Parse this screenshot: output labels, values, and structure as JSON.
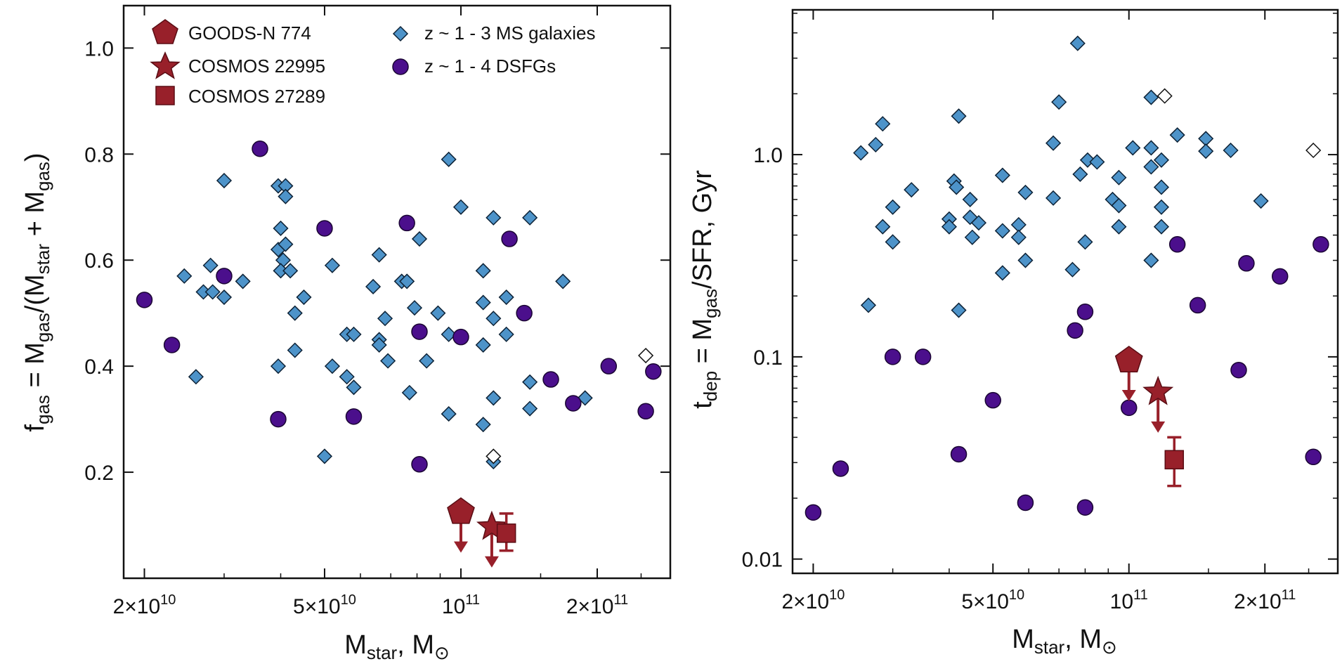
{
  "colors": {
    "ms_fill": "#4d93c9",
    "ms_stroke": "#0d2236",
    "dsfg_fill": "#4b0f8c",
    "dsfg_stroke": "#1a0533",
    "target_fill": "#98202a",
    "target_stroke": "#5a0d14",
    "open_fill": "#ffffff",
    "axis_color": "#111111"
  },
  "legend": {
    "goods": "GOODS-N 774",
    "cosmos1": "COSMOS 22995",
    "cosmos2": "COSMOS 27289",
    "ms": "z ~ 1 - 3 MS galaxies",
    "dsfg": "z ~ 1 - 4 DSFGs"
  },
  "chart_data": [
    {
      "type": "scatter",
      "xlabel_main": "M",
      "xlabel_sub": "star",
      "xlabel_rest": ", M",
      "xlabel_sym": "⊙",
      "ylabel_parts": {
        "f": "f",
        "gas": "gas",
        "eq": " = M",
        "gas2": "gas",
        "mid": "/(M",
        "star": "star",
        "plus": " + M",
        "gas3": "gas",
        "close": ")"
      },
      "x_scale": "log",
      "xlim": [
        18000000000.0,
        290000000000.0
      ],
      "ylim": [
        0.0,
        1.08
      ],
      "xticks": [
        {
          "value": 20000000000.0,
          "mant": "2×10",
          "exp": "10"
        },
        {
          "value": 50000000000.0,
          "mant": "5×10",
          "exp": "10"
        },
        {
          "value": 100000000000.0,
          "mant": "10",
          "exp": "11"
        },
        {
          "value": 200000000000.0,
          "mant": "2×10",
          "exp": "11"
        }
      ],
      "yticks": [
        {
          "value": 0.2,
          "label": "0.2"
        },
        {
          "value": 0.4,
          "label": "0.4"
        },
        {
          "value": 0.6,
          "label": "0.6"
        },
        {
          "value": 0.8,
          "label": "0.8"
        },
        {
          "value": 1.0,
          "label": "1.0"
        }
      ],
      "series": [
        {
          "name": "z ~ 1 - 3 MS galaxies",
          "marker": "diamond",
          "points": [
            [
              24500000000.0,
              0.57
            ],
            [
              26000000000.0,
              0.38
            ],
            [
              27000000000.0,
              0.54
            ],
            [
              28000000000.0,
              0.59
            ],
            [
              28300000000.0,
              0.54
            ],
            [
              30000000000.0,
              0.75
            ],
            [
              30000000000.0,
              0.53
            ],
            [
              33000000000.0,
              0.56
            ],
            [
              39500000000.0,
              0.74
            ],
            [
              41000000000.0,
              0.74
            ],
            [
              41000000000.0,
              0.72
            ],
            [
              40000000000.0,
              0.66
            ],
            [
              39500000000.0,
              0.62
            ],
            [
              40500000000.0,
              0.6
            ],
            [
              41000000000.0,
              0.63
            ],
            [
              40000000000.0,
              0.58
            ],
            [
              39500000000.0,
              0.4
            ],
            [
              42000000000.0,
              0.58
            ],
            [
              43000000000.0,
              0.5
            ],
            [
              43000000000.0,
              0.43
            ],
            [
              45000000000.0,
              0.53
            ],
            [
              52000000000.0,
              0.59
            ],
            [
              52000000000.0,
              0.4
            ],
            [
              50000000000.0,
              0.23
            ],
            [
              56000000000.0,
              0.46
            ],
            [
              56000000000.0,
              0.38
            ],
            [
              58000000000.0,
              0.46
            ],
            [
              58000000000.0,
              0.36
            ],
            [
              64000000000.0,
              0.55
            ],
            [
              66000000000.0,
              0.61
            ],
            [
              66000000000.0,
              0.45
            ],
            [
              66000000000.0,
              0.44
            ],
            [
              68000000000.0,
              0.49
            ],
            [
              69000000000.0,
              0.41
            ],
            [
              74000000000.0,
              0.56
            ],
            [
              76000000000.0,
              0.56
            ],
            [
              77000000000.0,
              0.35
            ],
            [
              79000000000.0,
              0.51
            ],
            [
              81000000000.0,
              0.64
            ],
            [
              84000000000.0,
              0.41
            ],
            [
              89000000000.0,
              0.5
            ],
            [
              94000000000.0,
              0.79
            ],
            [
              94000000000.0,
              0.46
            ],
            [
              94000000000.0,
              0.31
            ],
            [
              100000000000.0,
              0.7
            ],
            [
              112000000000.0,
              0.58
            ],
            [
              112000000000.0,
              0.52
            ],
            [
              112000000000.0,
              0.44
            ],
            [
              112000000000.0,
              0.29
            ],
            [
              118000000000.0,
              0.68
            ],
            [
              118000000000.0,
              0.49
            ],
            [
              118000000000.0,
              0.34
            ],
            [
              118000000000.0,
              0.22
            ],
            [
              126000000000.0,
              0.53
            ],
            [
              126000000000.0,
              0.46
            ],
            [
              142000000000.0,
              0.68
            ],
            [
              142000000000.0,
              0.37
            ],
            [
              142000000000.0,
              0.32
            ],
            [
              168000000000.0,
              0.56
            ],
            [
              188000000000.0,
              0.34
            ]
          ]
        },
        {
          "name": "z ~ 1 - 3 MS galaxies (open)",
          "marker": "open-diamond",
          "points": [
            [
              118000000000.0,
              0.23
            ],
            [
              256000000000.0,
              0.42
            ]
          ]
        },
        {
          "name": "z ~ 1 - 4 DSFGs",
          "marker": "circle",
          "points": [
            [
              20000000000.0,
              0.525
            ],
            [
              23000000000.0,
              0.44
            ],
            [
              30000000000.0,
              0.57
            ],
            [
              36000000000.0,
              0.81
            ],
            [
              39500000000.0,
              0.3
            ],
            [
              50000000000.0,
              0.66
            ],
            [
              58000000000.0,
              0.305
            ],
            [
              76000000000.0,
              0.67
            ],
            [
              81000000000.0,
              0.465
            ],
            [
              81000000000.0,
              0.215
            ],
            [
              100000000000.0,
              0.455
            ],
            [
              128000000000.0,
              0.64
            ],
            [
              138000000000.0,
              0.5
            ],
            [
              158000000000.0,
              0.375
            ],
            [
              177000000000.0,
              0.33
            ],
            [
              212000000000.0,
              0.4
            ],
            [
              256000000000.0,
              0.315
            ],
            [
              266000000000.0,
              0.39
            ]
          ]
        }
      ],
      "targets": [
        {
          "name": "GOODS-N 774",
          "marker": "pentagon",
          "x": 100000000000.0,
          "y": 0.125,
          "upper_limit": true
        },
        {
          "name": "COSMOS 22995",
          "marker": "star",
          "x": 117000000000.0,
          "y": 0.097,
          "upper_limit": true
        },
        {
          "name": "COSMOS 27289",
          "marker": "square",
          "x": 126000000000.0,
          "y": 0.085,
          "err": [
            0.052,
            0.122
          ]
        }
      ]
    },
    {
      "type": "scatter",
      "xlabel_main": "M",
      "xlabel_sub": "star",
      "xlabel_rest": ", M",
      "xlabel_sym": "⊙",
      "ylabel_parts": {
        "t": "t",
        "dep": "dep",
        "eq": " = M",
        "gas": "gas",
        "rest": "/SFR, Gyr"
      },
      "x_scale": "log",
      "y_scale": "log",
      "xlim": [
        18000000000.0,
        290000000000.0
      ],
      "ylim": [
        0.0085,
        5.2
      ],
      "xticks": [
        {
          "value": 20000000000.0,
          "mant": "2×10",
          "exp": "10"
        },
        {
          "value": 50000000000.0,
          "mant": "5×10",
          "exp": "10"
        },
        {
          "value": 100000000000.0,
          "mant": "10",
          "exp": "11"
        },
        {
          "value": 200000000000.0,
          "mant": "2×10",
          "exp": "11"
        }
      ],
      "yticks": [
        {
          "value": 0.01,
          "label": "0.01"
        },
        {
          "value": 0.1,
          "label": "0.1"
        },
        {
          "value": 1.0,
          "label": "1.0"
        }
      ],
      "series": [
        {
          "name": "z ~ 1 - 3 MS galaxies",
          "marker": "diamond",
          "points": [
            [
              25500000000.0,
              1.02
            ],
            [
              26500000000.0,
              0.18
            ],
            [
              27500000000.0,
              1.12
            ],
            [
              28500000000.0,
              1.42
            ],
            [
              28500000000.0,
              0.44
            ],
            [
              30000000000.0,
              0.55
            ],
            [
              30000000000.0,
              0.37
            ],
            [
              33000000000.0,
              0.67
            ],
            [
              40000000000.0,
              0.48
            ],
            [
              40000000000.0,
              0.44
            ],
            [
              42000000000.0,
              1.55
            ],
            [
              41000000000.0,
              0.74
            ],
            [
              41500000000.0,
              0.69
            ],
            [
              42000000000.0,
              0.17
            ],
            [
              44500000000.0,
              0.6
            ],
            [
              44500000000.0,
              0.49
            ],
            [
              45000000000.0,
              0.39
            ],
            [
              46500000000.0,
              0.46
            ],
            [
              52500000000.0,
              0.79
            ],
            [
              52500000000.0,
              0.42
            ],
            [
              52500000000.0,
              0.26
            ],
            [
              57000000000.0,
              0.45
            ],
            [
              57000000000.0,
              0.39
            ],
            [
              59000000000.0,
              0.65
            ],
            [
              59000000000.0,
              0.3
            ],
            [
              68000000000.0,
              1.14
            ],
            [
              68000000000.0,
              0.61
            ],
            [
              70000000000.0,
              1.82
            ],
            [
              75000000000.0,
              0.27
            ],
            [
              78000000000.0,
              0.8
            ],
            [
              80000000000.0,
              0.37
            ],
            [
              81000000000.0,
              0.94
            ],
            [
              85000000000.0,
              0.92
            ],
            [
              77000000000.0,
              3.55
            ],
            [
              92000000000.0,
              0.6
            ],
            [
              95000000000.0,
              0.77
            ],
            [
              95000000000.0,
              0.56
            ],
            [
              95000000000.0,
              0.44
            ],
            [
              102000000000.0,
              1.08
            ],
            [
              112000000000.0,
              1.92
            ],
            [
              112000000000.0,
              1.08
            ],
            [
              112000000000.0,
              0.87
            ],
            [
              112000000000.0,
              0.3
            ],
            [
              118000000000.0,
              0.94
            ],
            [
              118000000000.0,
              0.69
            ],
            [
              118000000000.0,
              0.55
            ],
            [
              118000000000.0,
              0.44
            ],
            [
              128000000000.0,
              1.25
            ],
            [
              148000000000.0,
              1.2
            ],
            [
              148000000000.0,
              1.04
            ],
            [
              168000000000.0,
              1.05
            ],
            [
              196000000000.0,
              0.59
            ]
          ]
        },
        {
          "name": "z ~ 1 - 3 MS galaxies (open)",
          "marker": "open-diamond",
          "points": [
            [
              120000000000.0,
              1.95
            ],
            [
              256000000000.0,
              1.05
            ]
          ]
        },
        {
          "name": "z ~ 1 - 4 DSFGs",
          "marker": "circle",
          "points": [
            [
              20000000000.0,
              0.017
            ],
            [
              23000000000.0,
              0.028
            ],
            [
              30000000000.0,
              0.1
            ],
            [
              35000000000.0,
              0.1
            ],
            [
              42000000000.0,
              0.033
            ],
            [
              50000000000.0,
              0.061
            ],
            [
              59000000000.0,
              0.019
            ],
            [
              76000000000.0,
              0.135
            ],
            [
              80000000000.0,
              0.018
            ],
            [
              80000000000.0,
              0.167
            ],
            [
              100000000000.0,
              0.056
            ],
            [
              128000000000.0,
              0.36
            ],
            [
              142000000000.0,
              0.18
            ],
            [
              175000000000.0,
              0.086
            ],
            [
              182000000000.0,
              0.29
            ],
            [
              216000000000.0,
              0.25
            ],
            [
              256000000000.0,
              0.032
            ],
            [
              266000000000.0,
              0.36
            ]
          ]
        }
      ],
      "targets": [
        {
          "name": "GOODS-N 774",
          "marker": "pentagon",
          "x": 100000000000.0,
          "y": 0.096,
          "upper_limit": true
        },
        {
          "name": "COSMOS 22995",
          "marker": "star",
          "x": 116000000000.0,
          "y": 0.067,
          "upper_limit": true
        },
        {
          "name": "COSMOS 27289",
          "marker": "square",
          "x": 126000000000.0,
          "y": 0.031,
          "err": [
            0.023,
            0.04
          ]
        }
      ]
    }
  ]
}
